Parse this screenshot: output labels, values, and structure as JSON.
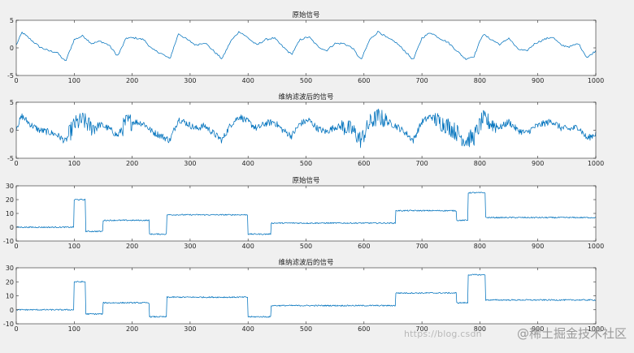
{
  "figure": {
    "background": "#f0f0f0",
    "axes_background": "#ffffff",
    "line_color": "#0072bd"
  },
  "chart_data": [
    {
      "type": "line",
      "title": "原始信号",
      "xlabel": "",
      "ylabel": "",
      "xlim": [
        0,
        1000
      ],
      "ylim": [
        -5,
        5
      ],
      "xticks": [
        0,
        100,
        200,
        300,
        400,
        500,
        600,
        700,
        800,
        900,
        1000
      ],
      "yticks": [
        -5,
        0,
        5
      ],
      "series": [
        {
          "name": "原始信号",
          "kind": "smooth",
          "x": [
            0,
            10,
            25,
            40,
            55,
            70,
            85,
            100,
            115,
            130,
            145,
            160,
            175,
            190,
            205,
            220,
            235,
            250,
            265,
            280,
            295,
            310,
            325,
            340,
            355,
            370,
            385,
            400,
            415,
            430,
            445,
            460,
            475,
            490,
            505,
            520,
            535,
            550,
            565,
            580,
            595,
            610,
            625,
            640,
            655,
            670,
            685,
            700,
            715,
            730,
            745,
            760,
            775,
            790,
            805,
            820,
            835,
            850,
            865,
            880,
            895,
            910,
            925,
            940,
            955,
            970,
            985,
            1000
          ],
          "y": [
            0.5,
            2.8,
            1.5,
            0.2,
            -0.5,
            -0.8,
            -2.5,
            1.5,
            2.2,
            0.8,
            1.2,
            0.5,
            -1.5,
            1.8,
            1.8,
            1.5,
            -0.3,
            -1.0,
            -2.0,
            2.6,
            1.5,
            0.5,
            1.0,
            -0.5,
            -2.0,
            1.2,
            3.0,
            1.8,
            0.5,
            1.5,
            1.8,
            0.2,
            -1.2,
            1.5,
            2.0,
            0.3,
            -0.5,
            0.8,
            0.8,
            0.0,
            -2.2,
            1.5,
            3.0,
            1.8,
            1.0,
            -0.5,
            -2.2,
            1.8,
            2.8,
            1.8,
            1.0,
            -0.5,
            -2.0,
            -1.5,
            2.5,
            1.5,
            0.6,
            1.8,
            -0.2,
            -0.6,
            0.8,
            1.5,
            2.0,
            0.5,
            0.2,
            0.8,
            -1.8,
            -0.5
          ]
        }
      ]
    },
    {
      "type": "line",
      "title": "维纳滤波后的信号",
      "xlabel": "",
      "ylabel": "",
      "xlim": [
        0,
        1000
      ],
      "ylim": [
        -5,
        5
      ],
      "xticks": [
        0,
        100,
        200,
        300,
        400,
        500,
        600,
        700,
        800,
        900,
        1000
      ],
      "yticks": [
        -5,
        0,
        5
      ],
      "series": [
        {
          "name": "维纳滤波后的信号",
          "kind": "noisy",
          "x": [
            0,
            10,
            25,
            40,
            55,
            70,
            85,
            100,
            115,
            130,
            145,
            160,
            175,
            190,
            205,
            220,
            235,
            250,
            265,
            280,
            295,
            310,
            325,
            340,
            355,
            370,
            385,
            400,
            415,
            430,
            445,
            460,
            475,
            490,
            505,
            520,
            535,
            550,
            565,
            580,
            595,
            610,
            625,
            640,
            655,
            670,
            685,
            700,
            715,
            730,
            745,
            760,
            775,
            790,
            805,
            820,
            835,
            850,
            865,
            880,
            895,
            910,
            925,
            940,
            955,
            970,
            985,
            1000
          ],
          "y": [
            0.5,
            2.5,
            1.0,
            0.0,
            -0.3,
            -0.8,
            -2.0,
            1.0,
            1.8,
            0.5,
            1.0,
            0.3,
            -1.0,
            1.5,
            1.5,
            1.2,
            -0.3,
            -1.0,
            -1.8,
            2.0,
            1.2,
            0.3,
            0.8,
            -0.5,
            -1.8,
            1.0,
            2.5,
            1.5,
            0.3,
            1.2,
            1.5,
            0.0,
            -1.0,
            1.2,
            1.8,
            0.3,
            -0.3,
            0.6,
            0.6,
            0.0,
            -1.8,
            1.3,
            2.5,
            1.5,
            0.8,
            -0.3,
            -1.8,
            1.5,
            2.5,
            1.5,
            0.8,
            -0.4,
            -1.8,
            -1.2,
            2.0,
            1.2,
            0.5,
            1.5,
            0.0,
            -0.5,
            0.6,
            1.2,
            1.6,
            0.4,
            0.2,
            0.6,
            -1.5,
            -0.6
          ]
        }
      ]
    },
    {
      "type": "line",
      "title": "原始信号",
      "xlabel": "",
      "ylabel": "",
      "xlim": [
        0,
        1000
      ],
      "ylim": [
        -10,
        30
      ],
      "xticks": [
        0,
        100,
        200,
        300,
        400,
        500,
        600,
        700,
        800,
        900,
        1000
      ],
      "yticks": [
        -10,
        0,
        10,
        20,
        30
      ],
      "series": [
        {
          "name": "原始信号",
          "kind": "step",
          "x": [
            0,
            100,
            100,
            120,
            120,
            150,
            150,
            230,
            230,
            260,
            260,
            400,
            400,
            440,
            440,
            655,
            655,
            760,
            760,
            780,
            780,
            810,
            810,
            1000
          ],
          "y": [
            0,
            0,
            20,
            20,
            -3,
            -3,
            5,
            5,
            -5,
            -5,
            9,
            9,
            -5,
            -5,
            3,
            3,
            12,
            12,
            5,
            5,
            25,
            25,
            7,
            7
          ]
        }
      ]
    },
    {
      "type": "line",
      "title": "维纳滤波后的信号",
      "xlabel": "",
      "ylabel": "",
      "xlim": [
        0,
        1000
      ],
      "ylim": [
        -10,
        30
      ],
      "xticks": [
        0,
        100,
        200,
        300,
        400,
        500,
        600,
        700,
        800,
        900,
        1000
      ],
      "yticks": [
        -10,
        0,
        10,
        20,
        30
      ],
      "series": [
        {
          "name": "维纳滤波后的信号",
          "kind": "step",
          "x": [
            0,
            100,
            100,
            120,
            120,
            150,
            150,
            230,
            230,
            260,
            260,
            400,
            400,
            440,
            440,
            655,
            655,
            760,
            760,
            780,
            780,
            810,
            810,
            1000
          ],
          "y": [
            0,
            0,
            20,
            20,
            -3,
            -3,
            5,
            5,
            -5,
            -5,
            9,
            9,
            -5,
            -5,
            3,
            3,
            12,
            12,
            5,
            5,
            25,
            25,
            7,
            7
          ]
        }
      ]
    }
  ],
  "watermark": {
    "url": "https://blog.csdn",
    "site": "@稀土掘金技术社区"
  }
}
